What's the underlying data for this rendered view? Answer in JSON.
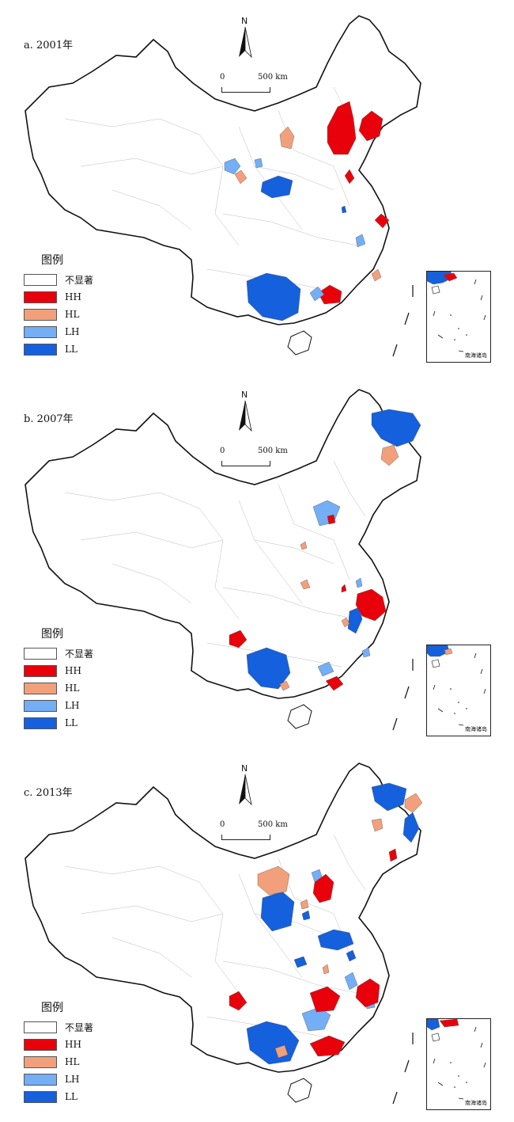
{
  "colors": {
    "HH": "#e8000b",
    "HL": "#f2a07b",
    "LH": "#74aef5",
    "LL": "#1560dc",
    "none": "#ffffff"
  },
  "legend": {
    "title": "图例",
    "items": [
      {
        "key": "none",
        "label": "不显著"
      },
      {
        "key": "HH",
        "label": "HH"
      },
      {
        "key": "HL",
        "label": "HL"
      },
      {
        "key": "LH",
        "label": "LH"
      },
      {
        "key": "LL",
        "label": "LL"
      }
    ]
  },
  "north_label": "N",
  "scale": {
    "zero": "0",
    "label": "500 km"
  },
  "inset_label": "南海诸岛",
  "panels": [
    {
      "title": "a. 2001年"
    },
    {
      "title": "b. 2007年"
    },
    {
      "title": "c. 2013年"
    }
  ]
}
